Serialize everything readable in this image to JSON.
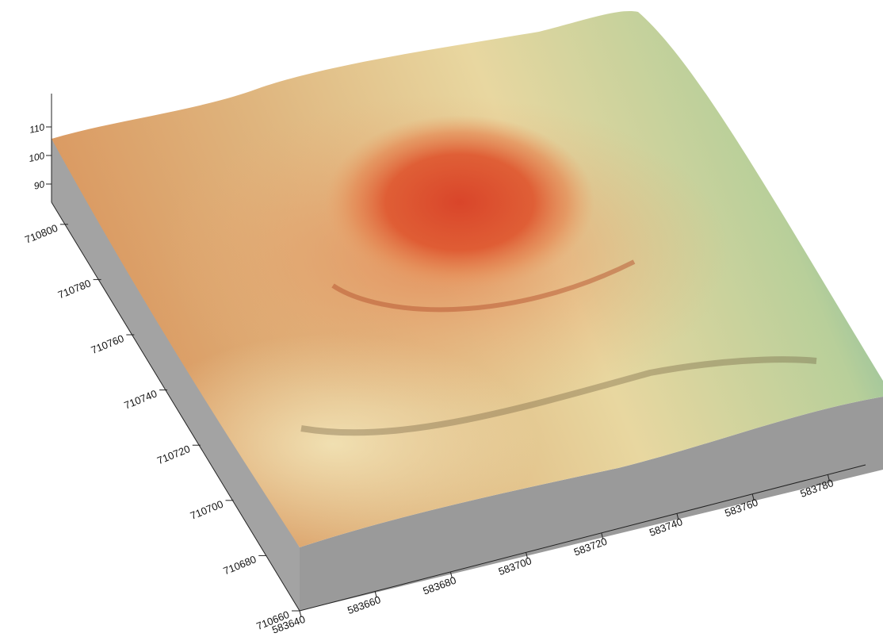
{
  "chart_data": {
    "type": "surface",
    "xticks": [
      583640,
      583660,
      583680,
      583700,
      583720,
      583740,
      583760,
      583780
    ],
    "yticks": [
      710660,
      710680,
      710700,
      710720,
      710740,
      710760,
      710780,
      710800
    ],
    "zticks": [
      90,
      100,
      110
    ],
    "xlim": [
      583640,
      583790
    ],
    "ylim": [
      710660,
      710810
    ],
    "zlim": [
      83.5,
      121.5
    ]
  }
}
